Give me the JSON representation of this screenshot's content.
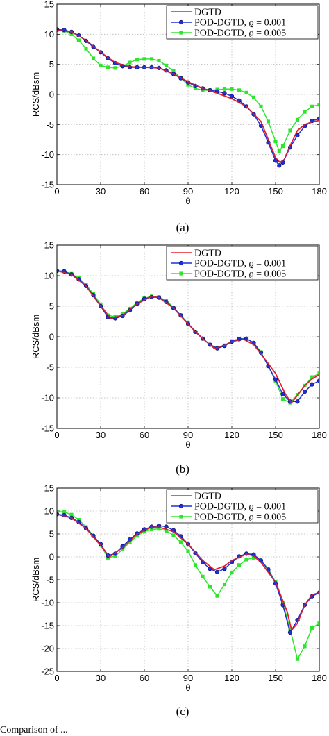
{
  "caption_fragment": "Comparison of ...",
  "chart_data": [
    {
      "type": "line",
      "panel_label": "(a)",
      "xlabel": "θ",
      "ylabel": "RCS/dBsm",
      "xlim": [
        0,
        180
      ],
      "ylim": [
        -15,
        15
      ],
      "xticks": [
        0,
        30,
        60,
        90,
        120,
        150,
        180
      ],
      "yticks": [
        -15,
        -10,
        -5,
        0,
        5,
        10,
        15
      ],
      "grid": true,
      "legend_position": "top-right",
      "series": [
        {
          "name": "DGTD",
          "color": "#e8202a",
          "marker": "none",
          "x": [
            0,
            10,
            20,
            30,
            40,
            50,
            60,
            70,
            80,
            90,
            100,
            110,
            120,
            130,
            140,
            145,
            150,
            153,
            156,
            160,
            165,
            170,
            175,
            180
          ],
          "y": [
            10.7,
            10.4,
            9.0,
            7.0,
            5.3,
            4.6,
            4.5,
            4.4,
            3.4,
            2.1,
            1.0,
            0.2,
            -0.7,
            -2.0,
            -4.5,
            -7.5,
            -10.5,
            -11.3,
            -10.8,
            -8.5,
            -6.0,
            -5.0,
            -4.6,
            -4.3
          ]
        },
        {
          "name": "POD-DGTD, ϱ = 0.001",
          "color": "#1f2fd8",
          "marker": "circle",
          "x": [
            0,
            5,
            10,
            15,
            20,
            25,
            30,
            35,
            40,
            45,
            50,
            55,
            60,
            65,
            70,
            75,
            80,
            85,
            90,
            95,
            100,
            105,
            110,
            115,
            120,
            125,
            130,
            135,
            140,
            145,
            150,
            152.5,
            155,
            160,
            165,
            170,
            175,
            180
          ],
          "y": [
            10.8,
            10.7,
            10.4,
            9.8,
            8.9,
            7.9,
            7.0,
            6.0,
            5.2,
            4.7,
            4.5,
            4.5,
            4.5,
            4.5,
            4.4,
            4.0,
            3.4,
            2.7,
            2.0,
            1.4,
            1.0,
            0.7,
            0.5,
            0.2,
            -0.3,
            -1.0,
            -2.0,
            -3.3,
            -5.2,
            -8.0,
            -11.0,
            -11.8,
            -11.3,
            -8.8,
            -6.8,
            -5.3,
            -4.4,
            -4.0
          ]
        },
        {
          "name": "POD-DGTD, ϱ = 0.005",
          "color": "#2ee52e",
          "marker": "square",
          "x": [
            0,
            5,
            10,
            15,
            20,
            25,
            30,
            35,
            40,
            45,
            50,
            55,
            60,
            65,
            70,
            75,
            80,
            85,
            90,
            95,
            100,
            105,
            110,
            115,
            120,
            125,
            130,
            135,
            140,
            145,
            150,
            152.5,
            155,
            160,
            165,
            170,
            175,
            180
          ],
          "y": [
            10.7,
            10.6,
            10.0,
            9.0,
            7.6,
            6.0,
            4.8,
            4.5,
            4.4,
            4.7,
            5.3,
            5.8,
            5.9,
            5.9,
            5.6,
            4.8,
            3.9,
            2.7,
            1.6,
            1.0,
            0.7,
            0.7,
            0.8,
            0.9,
            0.9,
            0.7,
            0.3,
            -0.5,
            -2.0,
            -4.5,
            -7.8,
            -9.4,
            -8.6,
            -6.0,
            -4.2,
            -2.9,
            -2.0,
            -1.7
          ]
        }
      ]
    },
    {
      "type": "line",
      "panel_label": "(b)",
      "xlabel": "θ",
      "ylabel": "RCS/dBsm",
      "xlim": [
        0,
        180
      ],
      "ylim": [
        -15,
        15
      ],
      "xticks": [
        0,
        30,
        60,
        90,
        120,
        150,
        180
      ],
      "yticks": [
        -15,
        -10,
        -5,
        0,
        5,
        10,
        15
      ],
      "grid": true,
      "legend_position": "top-right",
      "series": [
        {
          "name": "DGTD",
          "color": "#e8202a",
          "marker": "none",
          "x": [
            0,
            10,
            20,
            30,
            37,
            45,
            55,
            65,
            70,
            80,
            90,
            100,
            108,
            115,
            120,
            128,
            135,
            140,
            150,
            157,
            161,
            165,
            170,
            175,
            180
          ],
          "y": [
            10.8,
            10.2,
            8.3,
            5.0,
            3.0,
            3.5,
            5.4,
            6.6,
            6.4,
            4.7,
            2.1,
            -0.3,
            -1.9,
            -1.4,
            -0.8,
            -0.4,
            -1.3,
            -2.8,
            -6.0,
            -9.5,
            -10.8,
            -9.6,
            -8.0,
            -6.9,
            -6.2
          ]
        },
        {
          "name": "POD-DGTD, ϱ = 0.001",
          "color": "#1f2fd8",
          "marker": "circle",
          "x": [
            0,
            5,
            10,
            15,
            20,
            25,
            30,
            35,
            40,
            45,
            50,
            55,
            60,
            65,
            70,
            75,
            80,
            85,
            90,
            95,
            100,
            105,
            110,
            115,
            120,
            125,
            130,
            135,
            140,
            145,
            150,
            155,
            160,
            165,
            170,
            175,
            180
          ],
          "y": [
            10.8,
            10.7,
            10.2,
            9.4,
            8.3,
            6.8,
            5.0,
            3.2,
            3.0,
            3.4,
            4.3,
            5.4,
            6.2,
            6.5,
            6.4,
            5.7,
            4.7,
            3.5,
            2.1,
            0.8,
            -0.3,
            -1.3,
            -1.9,
            -1.5,
            -0.8,
            -0.4,
            -0.3,
            -1.0,
            -2.6,
            -4.8,
            -7.0,
            -9.4,
            -10.6,
            -10.6,
            -9.0,
            -7.8,
            -7.2
          ]
        },
        {
          "name": "POD-DGTD, ϱ = 0.005",
          "color": "#2ee52e",
          "marker": "square",
          "x": [
            0,
            5,
            10,
            15,
            20,
            25,
            30,
            35,
            40,
            45,
            50,
            55,
            60,
            65,
            70,
            75,
            80,
            85,
            90,
            95,
            100,
            105,
            110,
            115,
            120,
            125,
            130,
            135,
            140,
            145,
            150,
            155,
            160,
            165,
            170,
            175,
            180
          ],
          "y": [
            10.8,
            10.7,
            10.3,
            9.6,
            8.5,
            7.0,
            5.3,
            3.5,
            3.3,
            3.7,
            4.6,
            5.6,
            6.3,
            6.6,
            6.5,
            5.9,
            4.8,
            3.5,
            2.2,
            0.8,
            -0.3,
            -1.3,
            -1.8,
            -1.4,
            -0.7,
            -0.3,
            -0.3,
            -1.0,
            -2.5,
            -4.8,
            -7.2,
            -10.2,
            -10.8,
            -9.5,
            -8.0,
            -6.6,
            -6.0
          ]
        }
      ]
    },
    {
      "type": "line",
      "panel_label": "(c)",
      "xlabel": "θ",
      "ylabel": "RCS/dBsm",
      "xlim": [
        0,
        180
      ],
      "ylim": [
        -25,
        15
      ],
      "xticks": [
        0,
        30,
        60,
        90,
        120,
        150,
        180
      ],
      "yticks": [
        -25,
        -20,
        -15,
        -10,
        -5,
        0,
        5,
        10,
        15
      ],
      "grid": true,
      "legend_position": "top-right",
      "series": [
        {
          "name": "DGTD",
          "color": "#e8202a",
          "marker": "none",
          "x": [
            0,
            10,
            20,
            30,
            36,
            45,
            55,
            65,
            70,
            80,
            90,
            100,
            108,
            115,
            120,
            130,
            135,
            140,
            150,
            158,
            161,
            165,
            170,
            175,
            180
          ],
          "y": [
            9.3,
            8.5,
            6.2,
            2.5,
            0.0,
            2.0,
            5.0,
            6.5,
            6.5,
            5.5,
            2.8,
            -0.8,
            -2.8,
            -2.0,
            -0.8,
            0.6,
            0.2,
            -1.2,
            -5.5,
            -12.0,
            -16.0,
            -14.5,
            -10.5,
            -8.3,
            -7.8
          ]
        },
        {
          "name": "POD-DGTD, ϱ = 0.001",
          "color": "#1f2fd8",
          "marker": "circle",
          "x": [
            0,
            5,
            10,
            15,
            20,
            25,
            30,
            35,
            40,
            45,
            50,
            55,
            60,
            65,
            70,
            75,
            80,
            85,
            90,
            95,
            100,
            105,
            110,
            115,
            120,
            125,
            130,
            135,
            140,
            145,
            150,
            155,
            160,
            165,
            170,
            175,
            180
          ],
          "y": [
            9.3,
            9.1,
            8.5,
            7.6,
            6.2,
            4.6,
            2.8,
            0.3,
            0.7,
            2.3,
            3.8,
            5.1,
            6.0,
            6.6,
            6.8,
            6.6,
            5.8,
            4.5,
            2.8,
            0.8,
            -1.2,
            -2.6,
            -3.3,
            -2.6,
            -1.2,
            0.1,
            0.7,
            0.5,
            -0.8,
            -2.8,
            -5.8,
            -10.5,
            -16.5,
            -13.8,
            -10.5,
            -8.6,
            -7.8
          ]
        },
        {
          "name": "POD-DGTD, ϱ = 0.005",
          "color": "#2ee52e",
          "marker": "square",
          "x": [
            0,
            5,
            10,
            15,
            20,
            25,
            30,
            35,
            40,
            45,
            50,
            55,
            60,
            65,
            70,
            75,
            80,
            85,
            90,
            95,
            100,
            105,
            110,
            115,
            120,
            125,
            130,
            135,
            140,
            145,
            150,
            155,
            160,
            165,
            170,
            175,
            180
          ],
          "y": [
            9.9,
            9.8,
            9.2,
            8.1,
            6.5,
            4.6,
            2.6,
            -0.2,
            0.2,
            1.6,
            3.2,
            4.6,
            5.5,
            6.0,
            6.1,
            5.7,
            4.7,
            3.2,
            1.2,
            -1.8,
            -4.3,
            -6.5,
            -8.5,
            -6.0,
            -3.4,
            -1.8,
            -0.6,
            -0.2,
            -0.8,
            -2.6,
            -5.5,
            -10.0,
            -15.8,
            -22.3,
            -19.5,
            -15.5,
            -14.5
          ]
        }
      ]
    }
  ]
}
